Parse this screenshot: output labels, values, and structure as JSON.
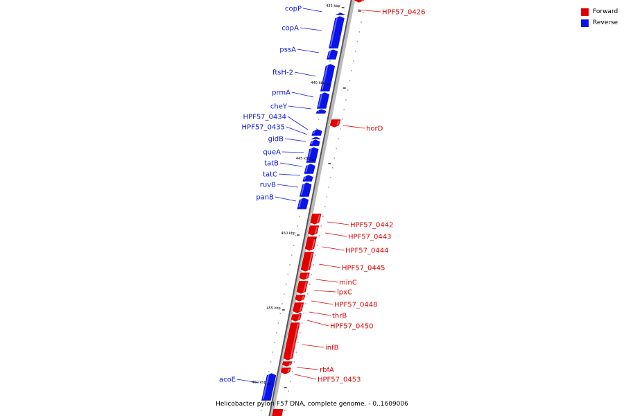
{
  "colors": {
    "forward": "#e00000",
    "reverse": "#0a14e8",
    "backbone": "#888888"
  },
  "legend": [
    {
      "label": "Forward",
      "color": "#e00000"
    },
    {
      "label": "Reverse",
      "color": "#0a14e8"
    }
  ],
  "caption": "Helicobacter pylori F57 DNA, complete genome. - 0..1609006",
  "ticks": [
    {
      "label": "435 kbp"
    },
    {
      "label": "440 kbp"
    },
    {
      "label": "445 kbp"
    },
    {
      "label": "450 kbp"
    },
    {
      "label": "455 kbp"
    },
    {
      "label": "460 kbp"
    }
  ],
  "genes": {
    "reverse": [
      "copP",
      "copA",
      "pssA",
      "ftsH-2",
      "prmA",
      "cheY",
      "HPF57_0434",
      "HPF57_0435",
      "gidB",
      "queA",
      "tatB",
      "tatC",
      "ruvB",
      "panB",
      "acoE"
    ],
    "forward": [
      "HPF57_0426",
      "horD",
      "HPF57_0442",
      "HPF57_0443",
      "HPF57_0444",
      "HPF57_0445",
      "minC",
      "lpxC",
      "HPF57_0448",
      "thrB",
      "HPF57_0450",
      "infB",
      "rbfA",
      "HPF57_0453"
    ]
  }
}
